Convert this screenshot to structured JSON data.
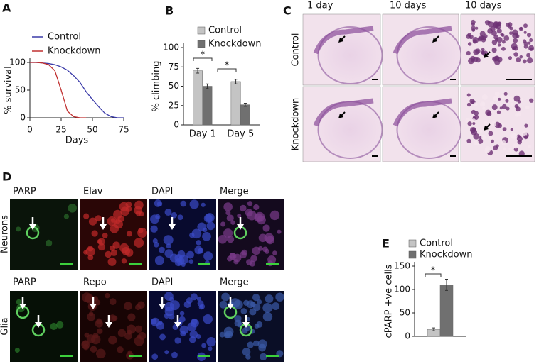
{
  "chart_data": [
    {
      "type": "line",
      "label": "A",
      "xlabel": "Days",
      "ylabel": "% survival",
      "x": [
        0,
        5,
        10,
        15,
        20,
        25,
        30,
        35,
        40,
        45,
        50,
        55,
        60,
        65,
        70,
        75
      ],
      "series": [
        {
          "name": "Control",
          "color": "#3a3aa8",
          "values": [
            100,
            100,
            99,
            98,
            96,
            92,
            86,
            76,
            64,
            47,
            33,
            20,
            8,
            2,
            0,
            0
          ]
        },
        {
          "name": "Knockdown",
          "color": "#c03030",
          "values": [
            100,
            100,
            99,
            96,
            85,
            50,
            12,
            2,
            0,
            0,
            null,
            null,
            null,
            null,
            null,
            null
          ]
        }
      ],
      "xlim": [
        0,
        75
      ],
      "xticks": [
        0,
        25,
        50,
        75
      ],
      "ylim": [
        0,
        100
      ],
      "yticks": [
        0,
        50,
        100
      ]
    },
    {
      "type": "bar",
      "label": "B",
      "ylabel": "% climbing",
      "categories": [
        "Day 1",
        "Day 5"
      ],
      "series": [
        {
          "name": "Control",
          "color": "#c4c4c4",
          "values": [
            70,
            56
          ],
          "errors": [
            3,
            3
          ]
        },
        {
          "name": "Knockdown",
          "color": "#707070",
          "values": [
            50,
            26
          ],
          "errors": [
            3,
            2
          ]
        }
      ],
      "annotations": [
        "*",
        "*"
      ],
      "ylim": [
        0,
        100
      ],
      "yticks": [
        0,
        25,
        50,
        75,
        100
      ]
    },
    {
      "type": "bar",
      "label": "E",
      "ylabel": "cPARP +ve cells",
      "categories": [
        null
      ],
      "series": [
        {
          "name": "Control",
          "color": "#c4c4c4",
          "values": [
            15
          ],
          "errors": [
            3
          ]
        },
        {
          "name": "Knockdown",
          "color": "#707070",
          "values": [
            110
          ],
          "errors": [
            12
          ]
        }
      ],
      "annotations": [
        "*"
      ],
      "ylim": [
        0,
        150
      ],
      "yticks": [
        0,
        50,
        100,
        150
      ]
    }
  ],
  "panel_c": {
    "label": "C",
    "columns": [
      "1 day",
      "10 days",
      "10 days"
    ],
    "rows": [
      "Control",
      "Knockdown"
    ]
  },
  "panel_d": {
    "label": "D",
    "rows": [
      {
        "name": "Neurons",
        "columns": [
          "PARP",
          "Elav",
          "DAPI",
          "Merge"
        ]
      },
      {
        "name": "Glia",
        "columns": [
          "PARP",
          "Repo",
          "DAPI",
          "Merge"
        ]
      }
    ]
  }
}
